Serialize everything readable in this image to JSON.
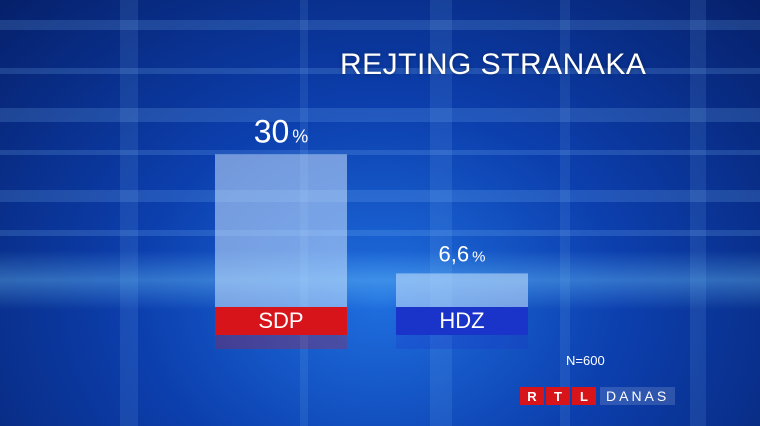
{
  "chart_data": {
    "type": "bar",
    "title": "REJTING STRANAKA",
    "categories": [
      "SDP",
      "HDZ"
    ],
    "values": [
      30,
      6.6
    ],
    "value_labels": [
      "30",
      "6,6"
    ],
    "value_unit": "%",
    "category_colors": [
      "#d8141b",
      "#1a33c8"
    ],
    "ylim": [
      0,
      33
    ],
    "grid": false
  },
  "footnote": "N=600",
  "logo": {
    "brand": "RTL",
    "show": "DANAS"
  }
}
